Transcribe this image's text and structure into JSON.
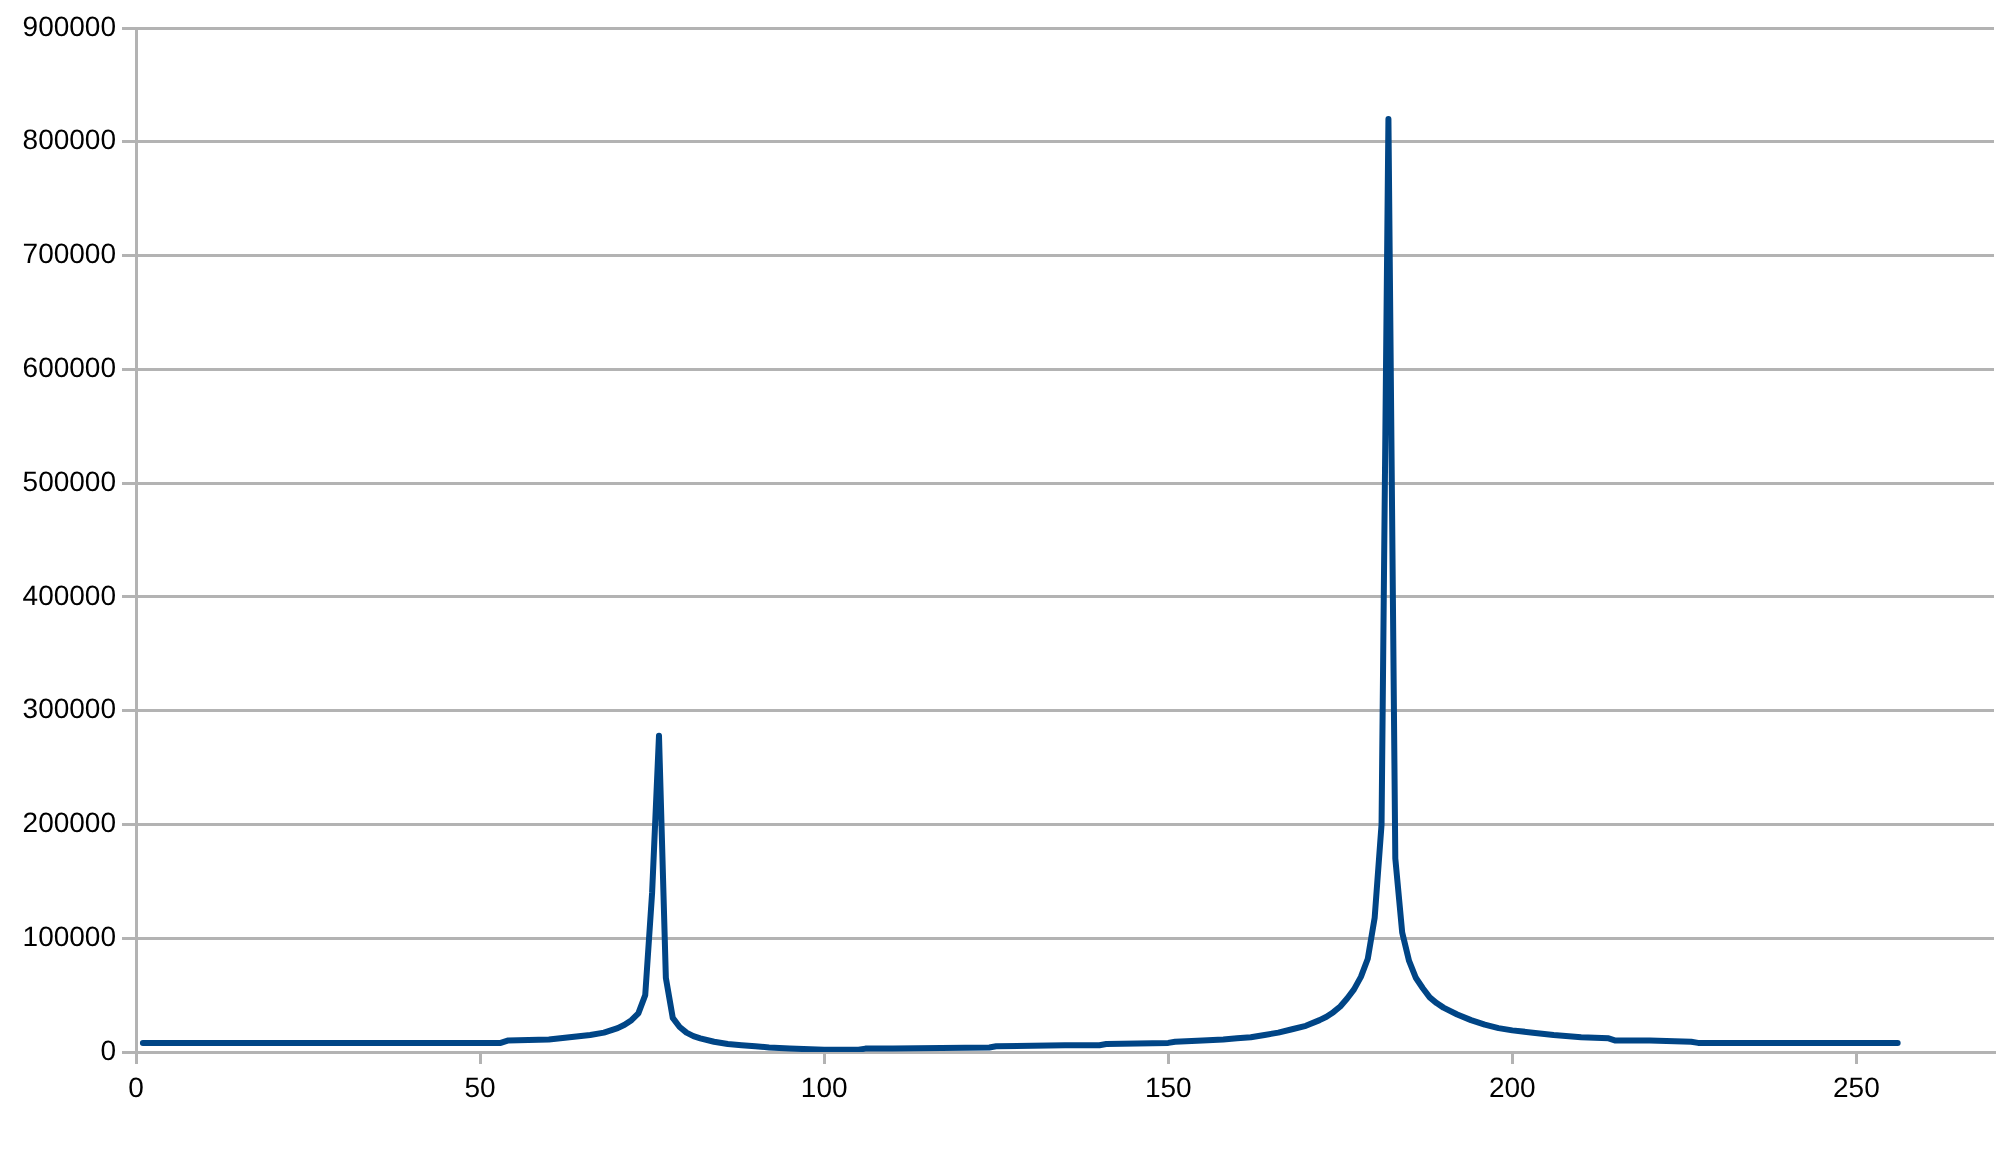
{
  "chart_data": {
    "type": "line",
    "color": "#004586",
    "x": [
      1,
      5,
      10,
      15,
      20,
      25,
      30,
      35,
      40,
      45,
      50,
      53,
      54,
      60,
      63,
      66,
      68,
      70,
      71,
      72,
      73,
      74,
      75,
      76,
      77,
      78,
      79,
      80,
      81,
      82,
      84,
      86,
      88,
      90,
      92,
      95,
      100,
      105,
      106,
      110,
      124,
      125,
      135,
      140,
      141,
      150,
      151,
      155,
      158,
      160,
      162,
      164,
      166,
      168,
      170,
      172,
      173,
      174,
      175,
      176,
      177,
      178,
      179,
      180,
      181,
      182,
      183,
      184,
      185,
      186,
      187,
      188,
      189,
      190,
      192,
      194,
      196,
      198,
      200,
      203,
      206,
      210,
      214,
      215,
      220,
      226,
      227,
      240,
      256
    ],
    "values": [
      8000,
      8000,
      8000,
      8000,
      8000,
      8000,
      8000,
      8000,
      8000,
      8000,
      8000,
      8000,
      10000,
      11000,
      13000,
      15000,
      17000,
      21000,
      24000,
      28000,
      34000,
      50000,
      140000,
      278000,
      65000,
      30000,
      22000,
      17000,
      14000,
      12000,
      9000,
      7000,
      6000,
      5000,
      4000,
      3000,
      2000,
      2000,
      3000,
      3000,
      4000,
      5000,
      6000,
      6000,
      7000,
      8000,
      9000,
      10000,
      11000,
      12000,
      13000,
      15000,
      17000,
      20000,
      23000,
      28000,
      31000,
      35000,
      40000,
      47000,
      55000,
      66000,
      82000,
      118000,
      200000,
      820000,
      170000,
      105000,
      80000,
      65000,
      56000,
      48000,
      43000,
      39000,
      33000,
      28000,
      24000,
      21000,
      19000,
      17000,
      15000,
      13000,
      12000,
      10000,
      10000,
      9000,
      8000,
      8000,
      8000
    ],
    "xlim": [
      0,
      270
    ],
    "xticks": [
      0,
      50,
      100,
      150,
      200,
      250
    ],
    "ylim": [
      0,
      900000
    ],
    "yticks": [
      0,
      100000,
      200000,
      300000,
      400000,
      500000,
      600000,
      700000,
      800000,
      900000
    ],
    "grid": "y"
  }
}
